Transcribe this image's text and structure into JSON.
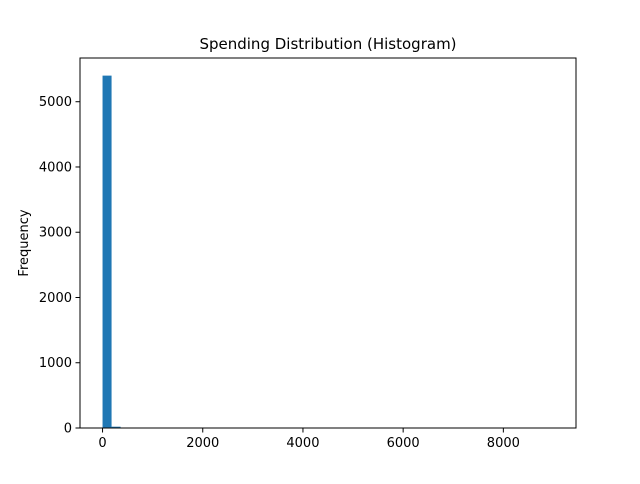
{
  "chart_data": {
    "type": "bar",
    "title": "Spending Distribution (Histogram)",
    "xlabel": "",
    "ylabel": "Frequency",
    "xlim": [
      -450,
      9450
    ],
    "ylim": [
      0,
      5670
    ],
    "xticks": [
      0,
      2000,
      4000,
      6000,
      8000
    ],
    "xtick_labels": [
      "0",
      "2000",
      "4000",
      "6000",
      "8000"
    ],
    "yticks": [
      0,
      1000,
      2000,
      3000,
      4000,
      5000
    ],
    "ytick_labels": [
      "0",
      "1000",
      "2000",
      "3000",
      "4000",
      "5000"
    ],
    "grid": false,
    "legend": "none",
    "bar_color": "#1f77b4",
    "bins": [
      {
        "x0": 0,
        "x1": 180,
        "count": 5400
      },
      {
        "x0": 180,
        "x1": 360,
        "count": 20
      },
      {
        "x0": 360,
        "x1": 540,
        "count": 5
      },
      {
        "x0": 540,
        "x1": 720,
        "count": 2
      },
      {
        "x0": 720,
        "x1": 900,
        "count": 1
      }
    ]
  }
}
